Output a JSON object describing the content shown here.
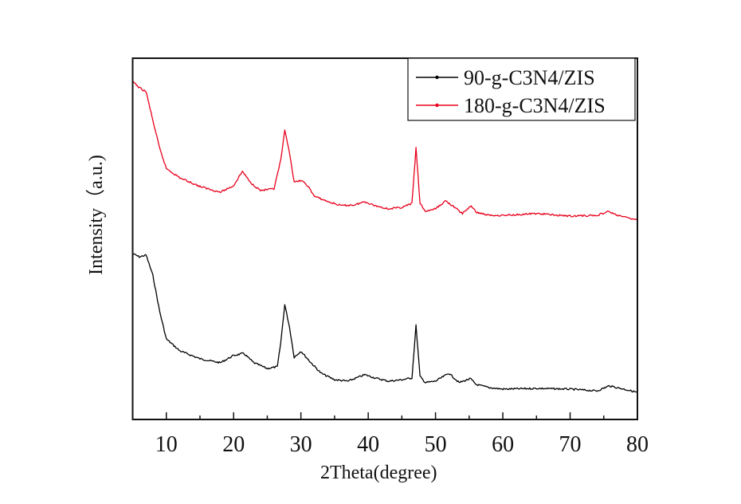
{
  "chart_data": {
    "type": "line",
    "title": "",
    "xlabel": "2Theta(degree)",
    "ylabel": "Intensity（a.u.)",
    "xlim": [
      5,
      80
    ],
    "ylim": [
      0,
      100
    ],
    "xticks": [
      10,
      20,
      30,
      40,
      50,
      60,
      70,
      80
    ],
    "x_minor_ticks": [
      15,
      25,
      35,
      45,
      55,
      65,
      75
    ],
    "y_tick_labels_shown": false,
    "grid": false,
    "legend": {
      "placement": "top-right",
      "entries": [
        {
          "label": "90-g-C3N4/ZIS",
          "color": "#000000"
        },
        {
          "label": "180-g-C3N4/ZIS",
          "color": "#e8001c"
        }
      ]
    },
    "series": [
      {
        "name": "90-g-C3N4/ZIS",
        "color": "#000000",
        "x": [
          5,
          6,
          7,
          8,
          9,
          10,
          12,
          15,
          18,
          20,
          21.5,
          23,
          25,
          26.5,
          27,
          27.6,
          28.3,
          29,
          30,
          31.5,
          33,
          35,
          37,
          39.5,
          41,
          43,
          45,
          46.5,
          47.1,
          47.7,
          48.5,
          50,
          52,
          53.5,
          55.2,
          56,
          58,
          60,
          65,
          70,
          74,
          75.8,
          78,
          80
        ],
        "y": [
          45.9,
          45.0,
          45.5,
          39.9,
          30.0,
          22.3,
          19.0,
          16.8,
          15.7,
          17.7,
          18.3,
          15.7,
          14.1,
          14.6,
          21.2,
          31.8,
          25.6,
          17.2,
          18.9,
          15.7,
          12.8,
          11.0,
          10.6,
          12.4,
          11.5,
          10.6,
          11.0,
          11.5,
          26.0,
          11.9,
          10.2,
          10.6,
          12.8,
          10.2,
          11.3,
          9.7,
          8.8,
          8.4,
          8.6,
          8.4,
          7.9,
          9.3,
          8.4,
          7.5
        ]
      },
      {
        "name": "180-g-C3N4/ZIS",
        "color": "#e8001c",
        "x": [
          5,
          6,
          7,
          8,
          9,
          10,
          12,
          15,
          18,
          20,
          21.3,
          22.5,
          24,
          26,
          27,
          27.6,
          28.3,
          29,
          30,
          31,
          32,
          34,
          36,
          38,
          39.5,
          41,
          43,
          45,
          46.5,
          47.1,
          47.7,
          48.5,
          50,
          51.5,
          52.5,
          54,
          55.3,
          56,
          58,
          60,
          65,
          70,
          74,
          75.7,
          77,
          80
        ],
        "y": [
          93.6,
          91.8,
          90.7,
          82.8,
          75.1,
          69.5,
          66.9,
          64.5,
          62.9,
          64.7,
          68.7,
          65.6,
          63.4,
          63.8,
          71.7,
          79.9,
          74.0,
          65.6,
          66.2,
          64.7,
          61.8,
          60.3,
          59.2,
          59.4,
          60.3,
          59.2,
          58.3,
          58.7,
          59.8,
          75.1,
          59.8,
          57.6,
          58.3,
          60.5,
          59.2,
          57.0,
          59.2,
          57.4,
          56.5,
          56.5,
          57.0,
          56.3,
          56.5,
          57.6,
          56.5,
          55.2
        ]
      }
    ]
  }
}
